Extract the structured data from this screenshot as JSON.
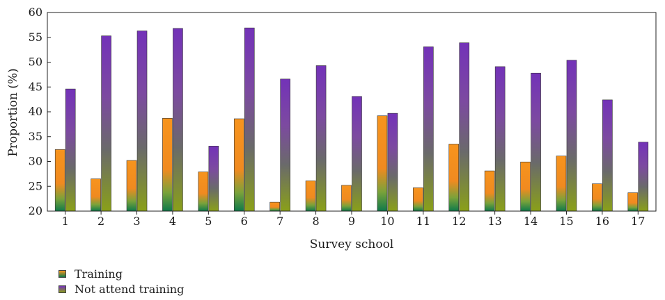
{
  "chart_data": {
    "type": "bar",
    "xlabel": "Survey school",
    "ylabel": "Proportion (%)",
    "ylim": [
      20,
      60
    ],
    "yticks": [
      20,
      25,
      30,
      35,
      40,
      45,
      50,
      55,
      60
    ],
    "categories": [
      "1",
      "2",
      "3",
      "4",
      "5",
      "6",
      "7",
      "8",
      "9",
      "10",
      "11",
      "12",
      "13",
      "14",
      "15",
      "16",
      "17"
    ],
    "series": [
      {
        "name": "Training",
        "values": [
          32.4,
          26.5,
          30.2,
          38.7,
          27.9,
          38.6,
          21.8,
          26.1,
          25.2,
          39.2,
          24.7,
          33.5,
          28.1,
          29.9,
          31.1,
          25.5,
          23.7
        ]
      },
      {
        "name": "Not attend training",
        "values": [
          44.6,
          55.3,
          56.3,
          56.8,
          33.1,
          56.9,
          46.6,
          49.3,
          43.1,
          39.7,
          53.1,
          53.9,
          49.1,
          47.8,
          50.4,
          42.4,
          33.9
        ]
      }
    ],
    "grid": false,
    "legend_position": "bottom-left",
    "colors": {
      "training": [
        "#f7941d",
        "#0e7a4a"
      ],
      "not_attend": [
        "#7e3ab5",
        "#8aa019"
      ]
    }
  }
}
